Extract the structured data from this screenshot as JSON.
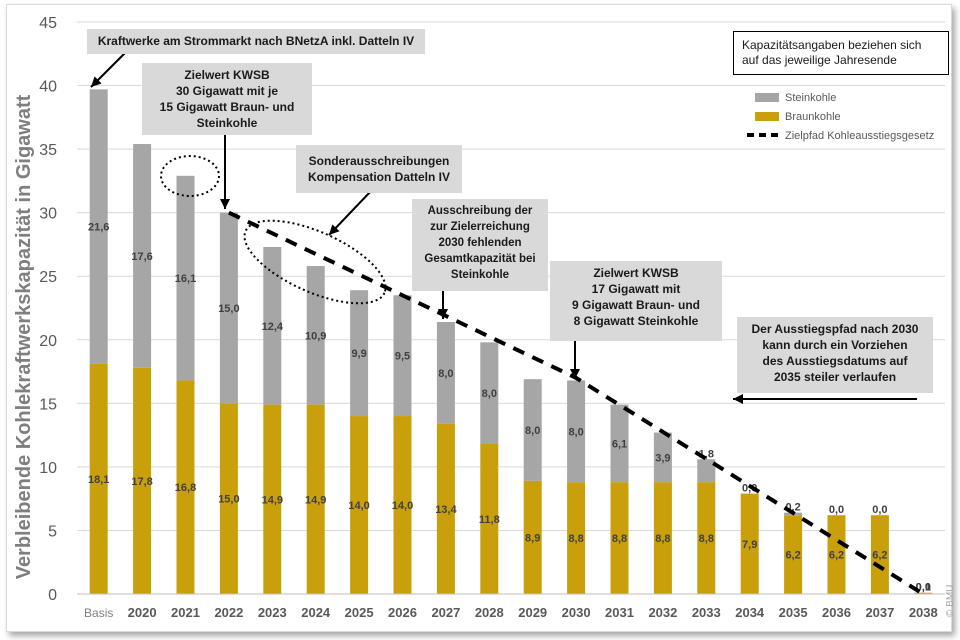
{
  "chart_data": {
    "type": "bar",
    "stacked": true,
    "ylabel": "Verbleibende Kohlekraftwerkskapazität in Gigawatt",
    "ylim": [
      0,
      45
    ],
    "yticks": [
      "0",
      "5",
      "10",
      "15",
      "20",
      "25",
      "30",
      "35",
      "40",
      "45"
    ],
    "categories": [
      "Basis",
      "2020",
      "2021",
      "2022",
      "2023",
      "2024",
      "2025",
      "2026",
      "2027",
      "2028",
      "2029",
      "2030",
      "2031",
      "2032",
      "2033",
      "2034",
      "2035",
      "2036",
      "2037",
      "2038"
    ],
    "series": [
      {
        "name": "Braunkohle",
        "color": "#c9a00c",
        "values": [
          18.1,
          17.8,
          16.8,
          15.0,
          14.9,
          14.9,
          14.0,
          14.0,
          13.4,
          11.8,
          8.9,
          8.8,
          8.8,
          8.8,
          8.8,
          7.9,
          6.2,
          6.2,
          6.2,
          0.1
        ],
        "labels": [
          "18,1",
          "17,8",
          "16,8",
          "15,0",
          "14,9",
          "14,9",
          "14,0",
          "14,0",
          "13,4",
          "11,8",
          "8,9",
          "8,8",
          "8,8",
          "8,8",
          "8,8",
          "7,9",
          "6,2",
          "6,2",
          "6,2",
          "0,1"
        ]
      },
      {
        "name": "Steinkohle",
        "color": "#a6a6a6",
        "values": [
          21.6,
          17.6,
          16.1,
          15.0,
          12.4,
          10.9,
          9.9,
          9.5,
          8.0,
          8.0,
          8.0,
          8.0,
          6.1,
          3.9,
          1.8,
          0.0,
          0.2,
          0.0,
          0.0,
          0.0
        ],
        "labels": [
          "21,6",
          "17,6",
          "16,1",
          "15,0",
          "12,4",
          "10,9",
          "9,9",
          "9,5",
          "8,0",
          "8,0",
          "8,0",
          "8,0",
          "6,1",
          "3,9",
          "1,8",
          "0,0",
          "0,2",
          "0,0",
          "0,0",
          "0,0"
        ]
      }
    ],
    "target_path": {
      "name": "Zielpfad Kohleausstiegsgesetz",
      "style": "dashed",
      "color": "#000000",
      "points": [
        [
          "2022",
          30
        ],
        [
          "2030",
          17
        ],
        [
          "2038",
          0
        ]
      ]
    },
    "legend_position": "top-right",
    "grid": true
  },
  "annotations": {
    "basis": "Kraftwerke am Strommarkt nach BNetzA inkl. Datteln IV",
    "kwsb2022": "Zielwert KWSB\n30 Gigawatt mit je\n15 Gigawatt Braun- und\nSteinkohle",
    "sonder": "Sonderausschreibungen\nKompensation Datteln IV",
    "ausschreibung": "Ausschreibung der\nzur Zielerreichung\n2030 fehlenden\nGesamtkapazität bei\nSteinkohle",
    "kwsb2030": "Zielwert KWSB\n17 Gigawatt mit\n9 Gigawatt Braun- und\n8 Gigawatt Steinkohle",
    "ausstieg": "Der Ausstiegspfad nach 2030\nkann durch ein Vorziehen\ndes Ausstiegsdatums auf\n2035 steiler verlaufen",
    "note": "Kapazitätsangaben beziehen sich\nauf das jeweilige Jahresende"
  },
  "copyright": "© BMU",
  "colors": {
    "braunkohle": "#c9a00c",
    "steinkohle": "#a6a6a6",
    "grid": "#d9d9d9",
    "annotation_box": "#d9d9d9"
  }
}
